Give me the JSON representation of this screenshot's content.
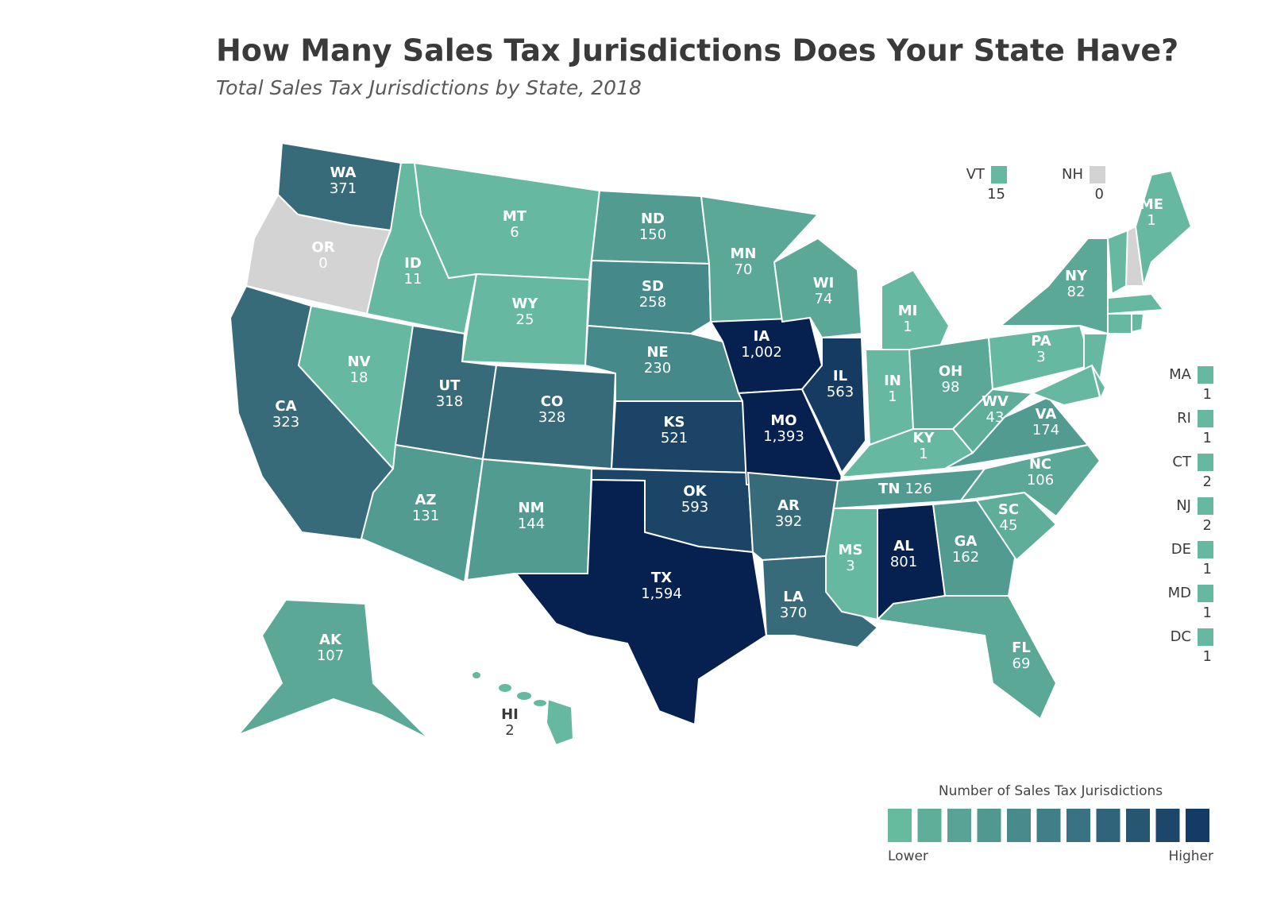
{
  "title": "How Many Sales Tax Jurisdictions Does Your State Have?",
  "subtitle": "Total Sales Tax Jurisdictions by State, 2018",
  "states": [
    {
      "abbr": "WA",
      "value": 371,
      "color": "#376b79"
    },
    {
      "abbr": "OR",
      "value": 0,
      "color": "#d3d3d3"
    },
    {
      "abbr": "CA",
      "value": 323,
      "color": "#376b79"
    },
    {
      "abbr": "NV",
      "value": 18,
      "color": "#66b9a0"
    },
    {
      "abbr": "ID",
      "value": 11,
      "color": "#66b9a0"
    },
    {
      "abbr": "MT",
      "value": 6,
      "color": "#66b9a0"
    },
    {
      "abbr": "WY",
      "value": 25,
      "color": "#66b9a0"
    },
    {
      "abbr": "UT",
      "value": 318,
      "color": "#376b79"
    },
    {
      "abbr": "CO",
      "value": 328,
      "color": "#376b79"
    },
    {
      "abbr": "AZ",
      "value": 131,
      "color": "#519b91"
    },
    {
      "abbr": "NM",
      "value": 144,
      "color": "#519b91"
    },
    {
      "abbr": "ND",
      "value": 150,
      "color": "#519b91"
    },
    {
      "abbr": "SD",
      "value": 258,
      "color": "#46898a"
    },
    {
      "abbr": "NE",
      "value": 230,
      "color": "#46898a"
    },
    {
      "abbr": "KS",
      "value": 521,
      "color": "#1c4467"
    },
    {
      "abbr": "OK",
      "value": 593,
      "color": "#1c4467"
    },
    {
      "abbr": "TX",
      "value": 1594,
      "value_label": "1,594",
      "color": "#062050"
    },
    {
      "abbr": "MN",
      "value": 70,
      "color": "#5ba897"
    },
    {
      "abbr": "IA",
      "value": 1002,
      "value_label": "1,002",
      "color": "#062050"
    },
    {
      "abbr": "MO",
      "value": 1393,
      "value_label": "1,393",
      "color": "#062050"
    },
    {
      "abbr": "AR",
      "value": 392,
      "color": "#376b79"
    },
    {
      "abbr": "LA",
      "value": 370,
      "color": "#376b79"
    },
    {
      "abbr": "WI",
      "value": 74,
      "color": "#5ba897"
    },
    {
      "abbr": "IL",
      "value": 563,
      "color": "#163b62"
    },
    {
      "abbr": "MI",
      "value": 1,
      "color": "#66b9a0"
    },
    {
      "abbr": "IN",
      "value": 1,
      "color": "#66b9a0"
    },
    {
      "abbr": "OH",
      "value": 98,
      "color": "#5ba897"
    },
    {
      "abbr": "KY",
      "value": 1,
      "color": "#66b9a0"
    },
    {
      "abbr": "TN",
      "value": 126,
      "color": "#519b91"
    },
    {
      "abbr": "MS",
      "value": 3,
      "color": "#66b9a0"
    },
    {
      "abbr": "AL",
      "value": 801,
      "color": "#062050"
    },
    {
      "abbr": "GA",
      "value": 162,
      "color": "#519b91"
    },
    {
      "abbr": "FL",
      "value": 69,
      "color": "#5ba897"
    },
    {
      "abbr": "SC",
      "value": 45,
      "color": "#5fae9a"
    },
    {
      "abbr": "NC",
      "value": 106,
      "color": "#5ba897"
    },
    {
      "abbr": "VA",
      "value": 174,
      "color": "#519b91"
    },
    {
      "abbr": "WV",
      "value": 43,
      "color": "#5fae9a"
    },
    {
      "abbr": "PA",
      "value": 3,
      "color": "#66b9a0"
    },
    {
      "abbr": "NY",
      "value": 82,
      "color": "#5ba897"
    },
    {
      "abbr": "NJ",
      "value": 2,
      "color": "#66b9a0"
    },
    {
      "abbr": "MD",
      "value": 1,
      "color": "#66b9a0"
    },
    {
      "abbr": "DE",
      "value": 1,
      "color": "#66b9a0"
    },
    {
      "abbr": "VT",
      "value": 15,
      "color": "#66b9a0"
    },
    {
      "abbr": "NH",
      "value": 0,
      "color": "#d3d3d3"
    },
    {
      "abbr": "ME",
      "value": 1,
      "color": "#66b9a0"
    },
    {
      "abbr": "MA",
      "value": 1,
      "color": "#66b9a0"
    },
    {
      "abbr": "CT",
      "value": 2,
      "color": "#66b9a0"
    },
    {
      "abbr": "RI",
      "value": 1,
      "color": "#66b9a0"
    },
    {
      "abbr": "DC",
      "value": 1,
      "color": "#66b9a0"
    },
    {
      "abbr": "AK",
      "value": 107,
      "color": "#5ba897"
    },
    {
      "abbr": "HI",
      "value": 2,
      "color": "#66b9a0"
    }
  ],
  "legend": {
    "title": "Number of Sales Tax Jurisdictions",
    "colors": [
      "#66bb9f",
      "#5fae9a",
      "#58a395",
      "#519890",
      "#498b8c",
      "#407e88",
      "#387283",
      "#2f647b",
      "#265672",
      "#1d476a",
      "#143a66"
    ],
    "low": "Lower",
    "high": "Higher"
  }
}
